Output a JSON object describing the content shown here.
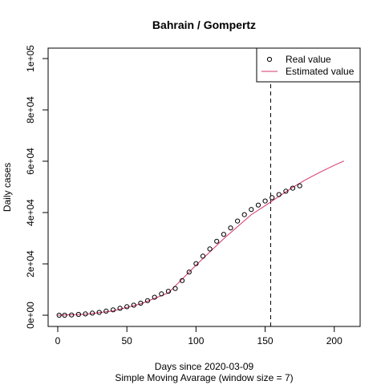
{
  "chart_data": {
    "type": "line",
    "title": "Bahrain / Gompertz",
    "xlabel": "Days since 2020-03-09",
    "xlabel2": "Simple Moving Avarage (window size = 7)",
    "ylabel": "Daily cases",
    "xlim": [
      0,
      210
    ],
    "ylim": [
      0,
      100000
    ],
    "x_ticks": [
      0,
      50,
      100,
      150,
      200
    ],
    "x_tick_labels": [
      "0",
      "50",
      "100",
      "150",
      "200"
    ],
    "y_ticks": [
      0,
      20000,
      40000,
      60000,
      80000,
      100000
    ],
    "y_tick_labels": [
      "0e+00",
      "2e+04",
      "4e+04",
      "6e+04",
      "8e+04",
      "1e+05"
    ],
    "vline_x": 154,
    "grid": false,
    "legend_position": "top-right",
    "colors": {
      "real": "#000000",
      "estimated": "#d6336c",
      "vline": "#000000"
    },
    "series": [
      {
        "name": "Real value",
        "style": "points",
        "x": [
          1,
          5,
          10,
          15,
          20,
          25,
          30,
          35,
          40,
          45,
          50,
          55,
          60,
          65,
          70,
          75,
          80,
          85,
          90,
          95,
          100,
          105,
          110,
          115,
          120,
          125,
          130,
          135,
          140,
          145,
          150,
          155,
          160,
          165,
          170,
          175
        ],
        "y": [
          0,
          0,
          100,
          300,
          500,
          800,
          1100,
          1600,
          2100,
          2700,
          3300,
          3900,
          4700,
          5700,
          7000,
          8300,
          9300,
          10400,
          13500,
          16800,
          20100,
          23000,
          25800,
          28800,
          31500,
          34000,
          36700,
          39200,
          41200,
          42900,
          44500,
          45800,
          47000,
          48300,
          49500,
          50400
        ]
      },
      {
        "name": "Estimated value",
        "style": "line",
        "x": [
          0,
          20,
          40,
          60,
          80,
          100,
          120,
          140,
          150,
          160,
          170,
          180,
          190,
          200,
          207
        ],
        "y": [
          0,
          350,
          1700,
          4400,
          8700,
          19500,
          29800,
          39200,
          42700,
          46300,
          49800,
          53000,
          55800,
          58400,
          60100
        ]
      }
    ]
  }
}
